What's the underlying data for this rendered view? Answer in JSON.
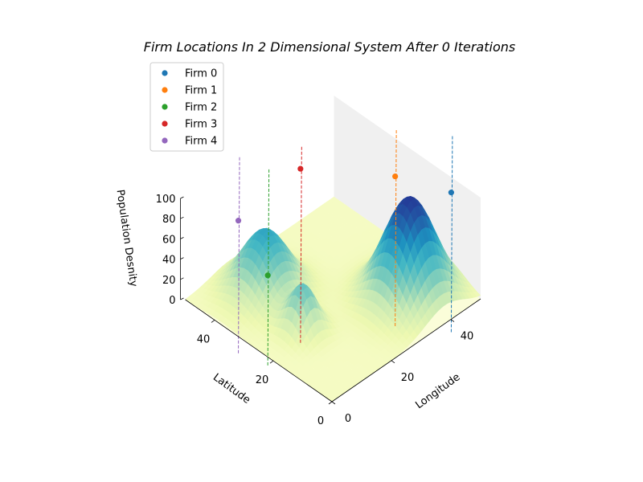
{
  "chart_data": {
    "type": "surface3d",
    "title": "Firm Locations In 2 Dimensional System After 0 Iterations",
    "xlabel": "Longitude",
    "ylabel": "Latitude",
    "zlabel": "Population Desnity",
    "xlim": [
      0,
      50
    ],
    "ylim": [
      0,
      50
    ],
    "zlim": [
      0,
      100
    ],
    "xticks": [
      "0",
      "20",
      "40"
    ],
    "yticks": [
      "0",
      "20",
      "40"
    ],
    "zticks": [
      "0",
      "20",
      "40",
      "60",
      "80",
      "100"
    ],
    "colormap": "YlGnBu",
    "legend_position": "upper-left",
    "surface_peaks": [
      {
        "x": 38,
        "y": 12,
        "height": 100
      },
      {
        "x": 15,
        "y": 38,
        "height": 62
      },
      {
        "x": 12,
        "y": 22,
        "height": 45
      }
    ],
    "series": [
      {
        "name": "Firm 0",
        "color": "#1f77b4",
        "x": 48,
        "y": 8,
        "z": 93
      },
      {
        "name": "Firm 1",
        "color": "#ff7f0e",
        "x": 40,
        "y": 19,
        "z": 103
      },
      {
        "name": "Firm 2",
        "color": "#2ca02c",
        "x": 9,
        "y": 31,
        "z": 44
      },
      {
        "name": "Firm 3",
        "color": "#d62728",
        "x": 20,
        "y": 31,
        "z": 127
      },
      {
        "name": "Firm 4",
        "color": "#9467bd",
        "x": 7,
        "y": 39,
        "z": 86
      }
    ]
  }
}
